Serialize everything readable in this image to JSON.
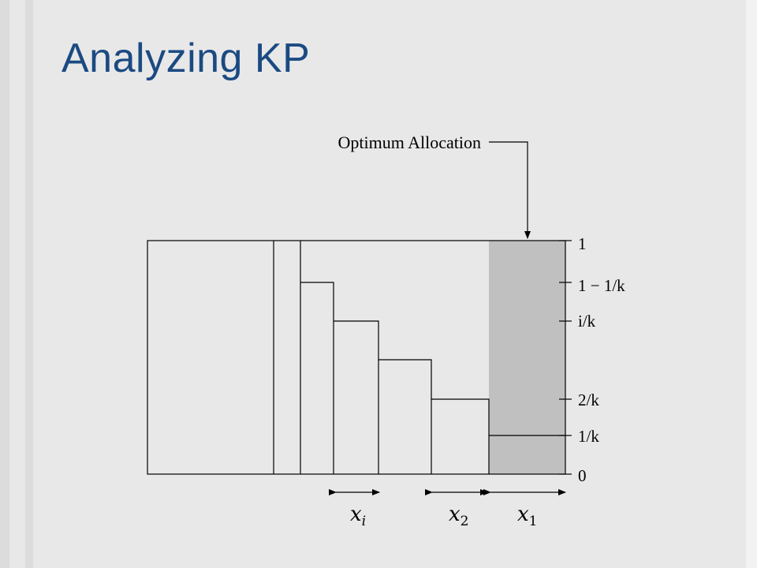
{
  "slide": {
    "title": "Analyzing KP"
  },
  "diagram": {
    "callout": "Optimum Allocation",
    "y_labels": [
      {
        "id": "one",
        "text": "1"
      },
      {
        "id": "one-minus-1k",
        "text": "1 − 1/k"
      },
      {
        "id": "i-over-k",
        "text": "i/k"
      },
      {
        "id": "two-over-k",
        "text": "2/k"
      },
      {
        "id": "one-over-k",
        "text": "1/k"
      },
      {
        "id": "zero",
        "text": "0"
      }
    ],
    "x_labels": {
      "xi_base": "x",
      "xi_sub": "i",
      "x2_base": "x",
      "x2_sub": "2",
      "x1_base": "x",
      "x1_sub": "1"
    },
    "colors": {
      "shaded": "#c0c0c0",
      "line": "#000000",
      "title": "#1b4a82"
    }
  }
}
